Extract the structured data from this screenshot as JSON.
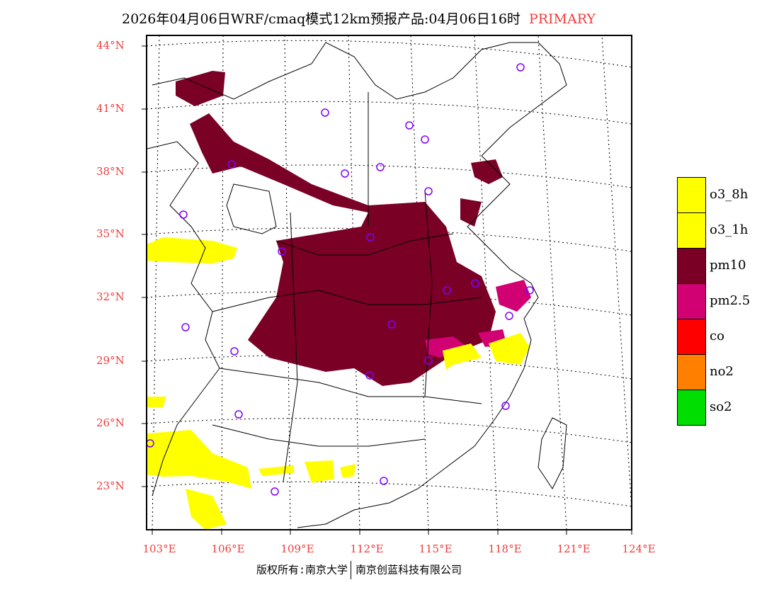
{
  "title": {
    "text": "2026年04月06日WRF/cmaq模式12km预报产品:04月06日16时",
    "tag": "PRIMARY"
  },
  "axes": {
    "lat_labels": [
      "44°N",
      "41°N",
      "38°N",
      "35°N",
      "32°N",
      "29°N",
      "26°N",
      "23°N"
    ],
    "lon_labels": [
      "103°E",
      "106°E",
      "109°E",
      "112°E",
      "115°E",
      "118°E",
      "121°E",
      "124°E"
    ]
  },
  "legend": [
    {
      "label": "o3_8h",
      "color": "#ffff00"
    },
    {
      "label": "o3_1h",
      "color": "#ffff00"
    },
    {
      "label": "pm10",
      "color": "#7a0026"
    },
    {
      "label": "pm2.5",
      "color": "#d10073"
    },
    {
      "label": "co",
      "color": "#ff0000"
    },
    {
      "label": "no2",
      "color": "#ff8000"
    },
    {
      "label": "so2",
      "color": "#00dd00"
    }
  ],
  "footer": {
    "left": "版权所有:南京大学",
    "right": "南京创蓝科技有限公司"
  }
}
